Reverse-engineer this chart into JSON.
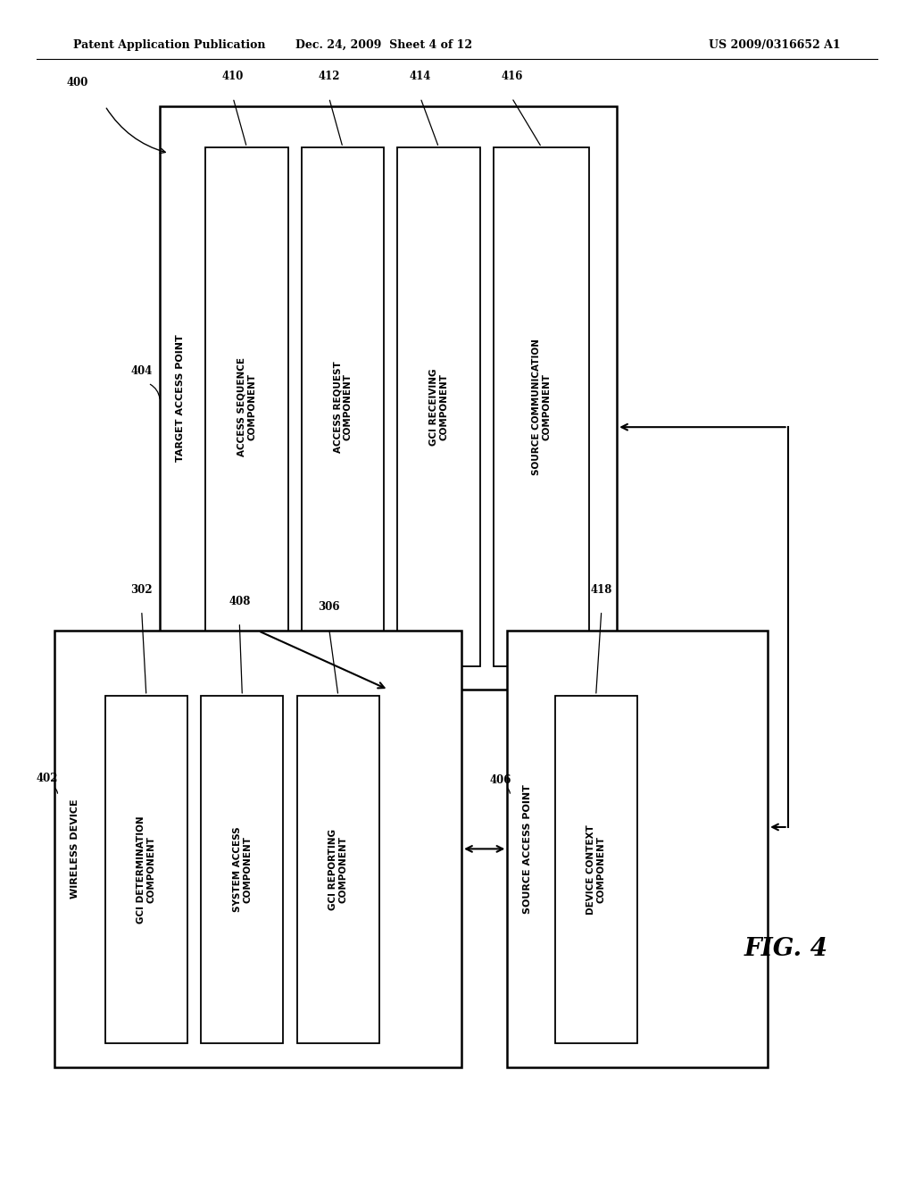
{
  "bg_color": "#ffffff",
  "header_left": "Patent Application Publication",
  "header_mid": "Dec. 24, 2009  Sheet 4 of 12",
  "header_right": "US 2009/0316652 A1",
  "fig_label": "FIG. 4"
}
